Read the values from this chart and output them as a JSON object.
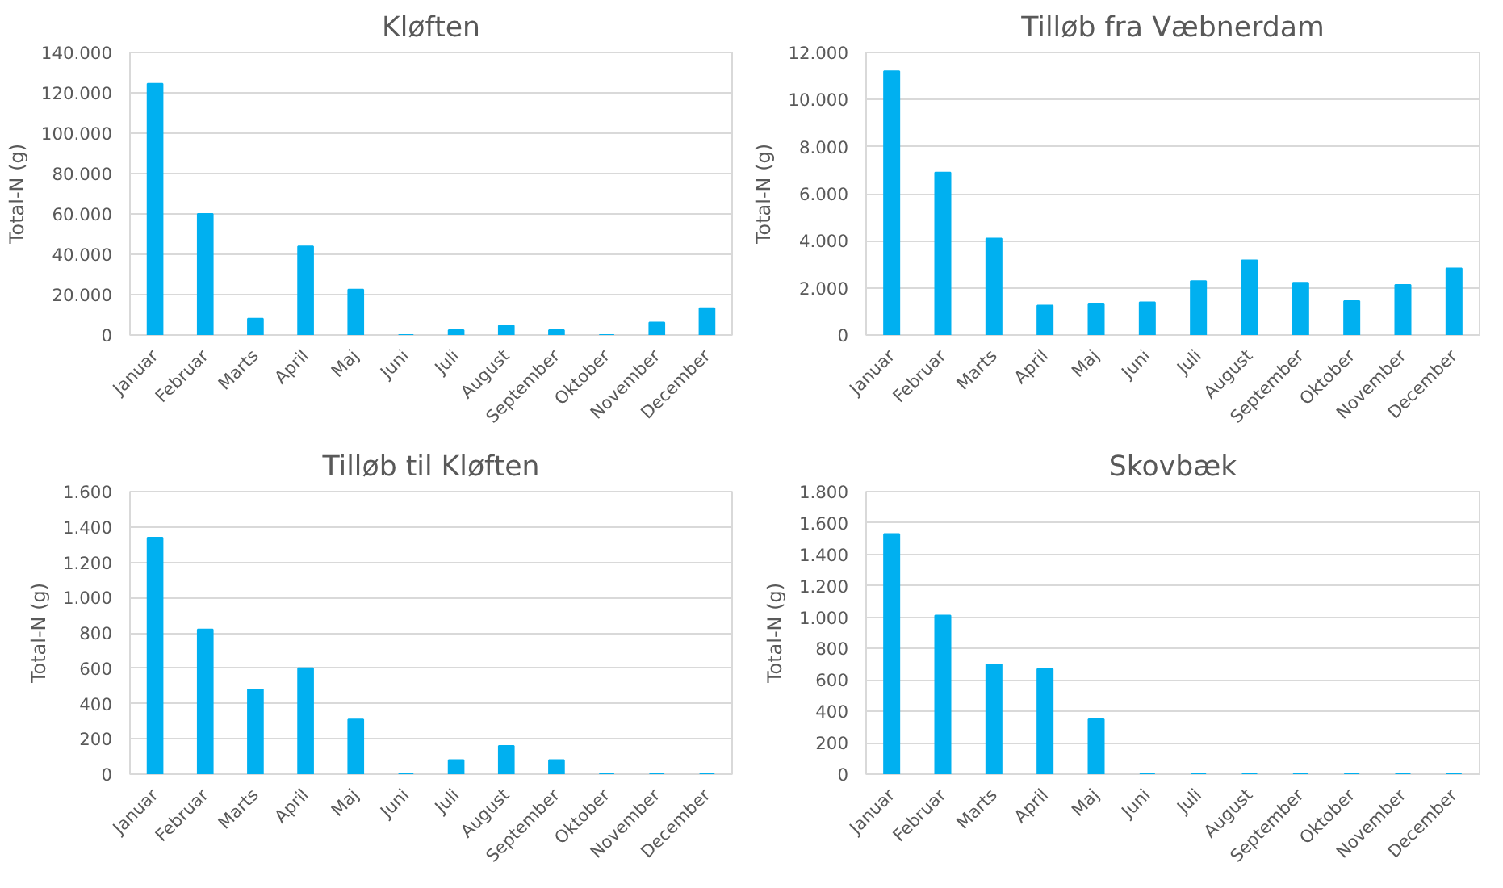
{
  "chart_data": [
    {
      "type": "bar",
      "title": "Kløften",
      "ylabel": "Total-N (g)",
      "categories": [
        "Januar",
        "Februar",
        "Marts",
        "April",
        "Maj",
        "Juni",
        "Juli",
        "August",
        "September",
        "Oktober",
        "November",
        "December"
      ],
      "values": [
        124500,
        60000,
        8100,
        43900,
        22500,
        0,
        2400,
        4600,
        2400,
        0,
        6200,
        13300
      ],
      "color": "#00b0f0",
      "ylim": [
        0,
        140000
      ],
      "yticks": [
        0,
        {
          "value": 20000,
          "label": "20.000"
        },
        {
          "value": 40000,
          "label": "40.000"
        },
        {
          "value": 60000,
          "label": "60.000"
        },
        {
          "value": 80000,
          "label": "80.000"
        },
        {
          "value": 100000,
          "label": "100.000"
        },
        {
          "value": 120000,
          "label": "120.000"
        },
        {
          "value": 140000,
          "label": "140.000"
        }
      ],
      "grid": "y"
    },
    {
      "type": "bar",
      "title": "Tilløb fra Væbnerdam",
      "ylabel": "Total-N (g)",
      "categories": [
        "Januar",
        "Februar",
        "Marts",
        "April",
        "Maj",
        "Juni",
        "Juli",
        "August",
        "September",
        "Oktober",
        "November",
        "December"
      ],
      "values": [
        11200,
        6900,
        4100,
        1250,
        1340,
        1390,
        2290,
        3170,
        2220,
        1440,
        2130,
        2830
      ],
      "color": "#00b0f0",
      "ylim": [
        0,
        12000
      ],
      "yticks": [
        0,
        {
          "value": 2000,
          "label": "2.000"
        },
        {
          "value": 4000,
          "label": "4.000"
        },
        {
          "value": 6000,
          "label": "6.000"
        },
        {
          "value": 8000,
          "label": "8.000"
        },
        {
          "value": 10000,
          "label": "10.000"
        },
        {
          "value": 12000,
          "label": "12.000"
        }
      ],
      "grid": "y"
    },
    {
      "type": "bar",
      "title": "Tilløb til Kløften",
      "ylabel": "Total-N (g)",
      "categories": [
        "Januar",
        "Februar",
        "Marts",
        "April",
        "Maj",
        "Juni",
        "Juli",
        "August",
        "September",
        "Oktober",
        "November",
        "December"
      ],
      "values": [
        1340,
        820,
        480,
        600,
        310,
        0,
        80,
        160,
        80,
        0,
        0,
        0
      ],
      "color": "#00b0f0",
      "ylim": [
        0,
        1600
      ],
      "yticks": [
        0,
        200,
        400,
        600,
        800,
        {
          "value": 1000,
          "label": "1.000"
        },
        {
          "value": 1200,
          "label": "1.200"
        },
        {
          "value": 1400,
          "label": "1.400"
        },
        {
          "value": 1600,
          "label": "1.600"
        }
      ],
      "grid": "y"
    },
    {
      "type": "bar",
      "title": "Skovbæk",
      "ylabel": "Total-N (g)",
      "categories": [
        "Januar",
        "Februar",
        "Marts",
        "April",
        "Maj",
        "Juni",
        "Juli",
        "August",
        "September",
        "Oktober",
        "November",
        "December"
      ],
      "values": [
        1530,
        1010,
        700,
        670,
        350,
        0,
        0,
        0,
        0,
        0,
        0,
        0
      ],
      "color": "#00b0f0",
      "ylim": [
        0,
        1800
      ],
      "yticks": [
        0,
        200,
        400,
        600,
        800,
        {
          "value": 1000,
          "label": "1.000"
        },
        {
          "value": 1200,
          "label": "1.200"
        },
        {
          "value": 1400,
          "label": "1.400"
        },
        {
          "value": 1600,
          "label": "1.600"
        },
        {
          "value": 1800,
          "label": "1.800"
        }
      ],
      "grid": "y"
    }
  ]
}
